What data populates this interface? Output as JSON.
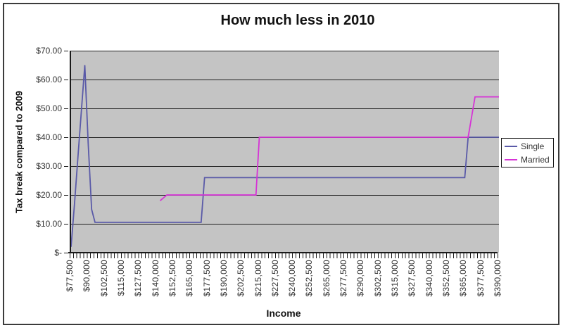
{
  "chart": {
    "title": "How much less in 2010",
    "y_axis": {
      "title": "Tax break compared to 2009",
      "tick_labels": [
        "$70.00",
        "$60.00",
        "$50.00",
        "$40.00",
        "$30.00",
        "$20.00",
        "$10.00",
        "$-"
      ]
    },
    "x_axis": {
      "title": "Income",
      "tick_labels": [
        "$77,500",
        "$90,000",
        "$102,500",
        "$115,000",
        "$127,500",
        "$140,000",
        "$152,500",
        "$165,000",
        "$177,500",
        "$190,000",
        "$202,500",
        "$215,000",
        "$227,500",
        "$240,000",
        "$252,500",
        "$265,000",
        "$277,500",
        "$290,000",
        "$302,500",
        "$315,000",
        "$327,500",
        "$340,000",
        "$352,500",
        "$365,000",
        "$377,500",
        "$390,000"
      ]
    },
    "legend": {
      "items": [
        {
          "label": "Single",
          "color": "#5a5aa8"
        },
        {
          "label": "Married",
          "color": "#d633d6"
        }
      ]
    },
    "colors": {
      "plot_background": "#c4c4c4",
      "gridline": "#202020",
      "single_series": "#5a5aa8",
      "married_series": "#d633d6"
    }
  },
  "chart_data": {
    "type": "line",
    "title": "How much less in 2010",
    "xlabel": "Income",
    "ylabel": "Tax break compared to 2009",
    "xlim": [
      77500,
      390000
    ],
    "ylim": [
      0,
      70
    ],
    "y_tick_step": 10,
    "x_label_step": 12500,
    "x_minor_tick_step": 2500,
    "grid": "horizontal",
    "legend_position": "right",
    "series": [
      {
        "name": "Single",
        "color": "#5a5aa8",
        "points": [
          [
            77500,
            2
          ],
          [
            80000,
            17
          ],
          [
            82500,
            33
          ],
          [
            85000,
            49
          ],
          [
            87500,
            65
          ],
          [
            90000,
            38
          ],
          [
            92500,
            15
          ],
          [
            95000,
            10.5
          ],
          [
            172500,
            10.5
          ],
          [
            175000,
            26
          ],
          [
            365000,
            26
          ],
          [
            367500,
            40
          ],
          [
            390000,
            40
          ]
        ]
      },
      {
        "name": "Married",
        "color": "#d633d6",
        "points": [
          [
            142500,
            18
          ],
          [
            147500,
            20
          ],
          [
            212500,
            20
          ],
          [
            215000,
            40
          ],
          [
            367500,
            40
          ],
          [
            372500,
            54
          ],
          [
            390000,
            54
          ]
        ]
      }
    ]
  }
}
